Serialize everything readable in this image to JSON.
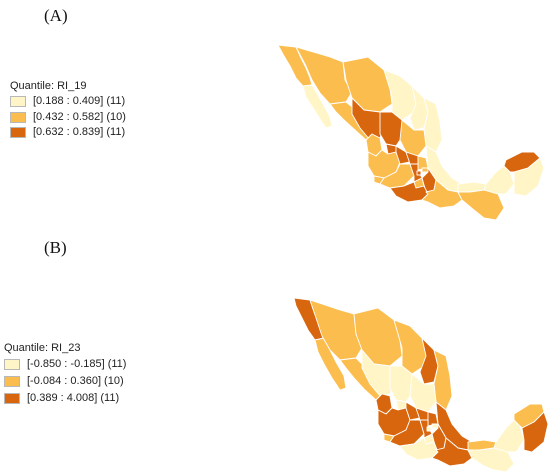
{
  "panel_a": {
    "label": "(A)",
    "legend_title": "Quantile: RI_19",
    "classes": [
      {
        "range": "[0.188 : 0.409] (11)",
        "color": "#fff5c6"
      },
      {
        "range": "[0.432 : 0.582] (10)",
        "color": "#fcbd4f"
      },
      {
        "range": "[0.632 : 0.839] (11)",
        "color": "#d8660f"
      }
    ]
  },
  "panel_b": {
    "label": "(B)",
    "legend_title": "Quantile: RI_23",
    "classes": [
      {
        "range": "[-0.850 : -0.185] (11)",
        "color": "#fff5c6"
      },
      {
        "range": "[-0.084 : 0.360] (10)",
        "color": "#fcbd4f"
      },
      {
        "range": "[0.389 : 4.008] (11)",
        "color": "#d8660f"
      }
    ]
  }
}
